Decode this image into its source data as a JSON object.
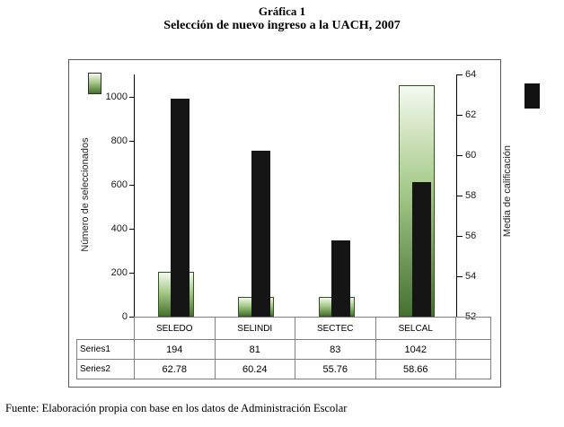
{
  "title": "Gráfica 1",
  "subtitle": "Selección de nuevo ingreso a la UACH, 2007",
  "source": "Fuente: Elaboración propia con base en los datos de Administración Escolar",
  "chart_data": {
    "type": "bar",
    "title": "Gráfica 1",
    "subtitle": "Selección de nuevo ingreso a la UACH, 2007",
    "categories": [
      "SELEDO",
      "SELINDI",
      "SECTEC",
      "SELCAL"
    ],
    "series": [
      {
        "name": "Series1",
        "axis": "left",
        "values": [
          194,
          81,
          83,
          1042
        ]
      },
      {
        "name": "Series2",
        "axis": "right",
        "values": [
          62.78,
          60.24,
          55.76,
          58.66
        ]
      }
    ],
    "axis_left": {
      "label": "Número de seleccionados",
      "ticks": [
        0,
        200,
        400,
        600,
        800,
        1000
      ],
      "min": 0,
      "max": 1100
    },
    "axis_right": {
      "label": "Media  de calificación",
      "ticks": [
        52,
        54,
        56,
        58,
        60,
        62,
        64
      ],
      "min": 52,
      "max": 64
    },
    "colors": {
      "series1_gradient_top": "#f4f9ef",
      "series1_gradient_mid": "#a6ca89",
      "series1_gradient_bottom": "#45712f",
      "series2": "#151515"
    },
    "legend": "color swatches only: green gradient swatch top-left, black swatch top-right",
    "grid": "off",
    "data_table_shown": true
  }
}
